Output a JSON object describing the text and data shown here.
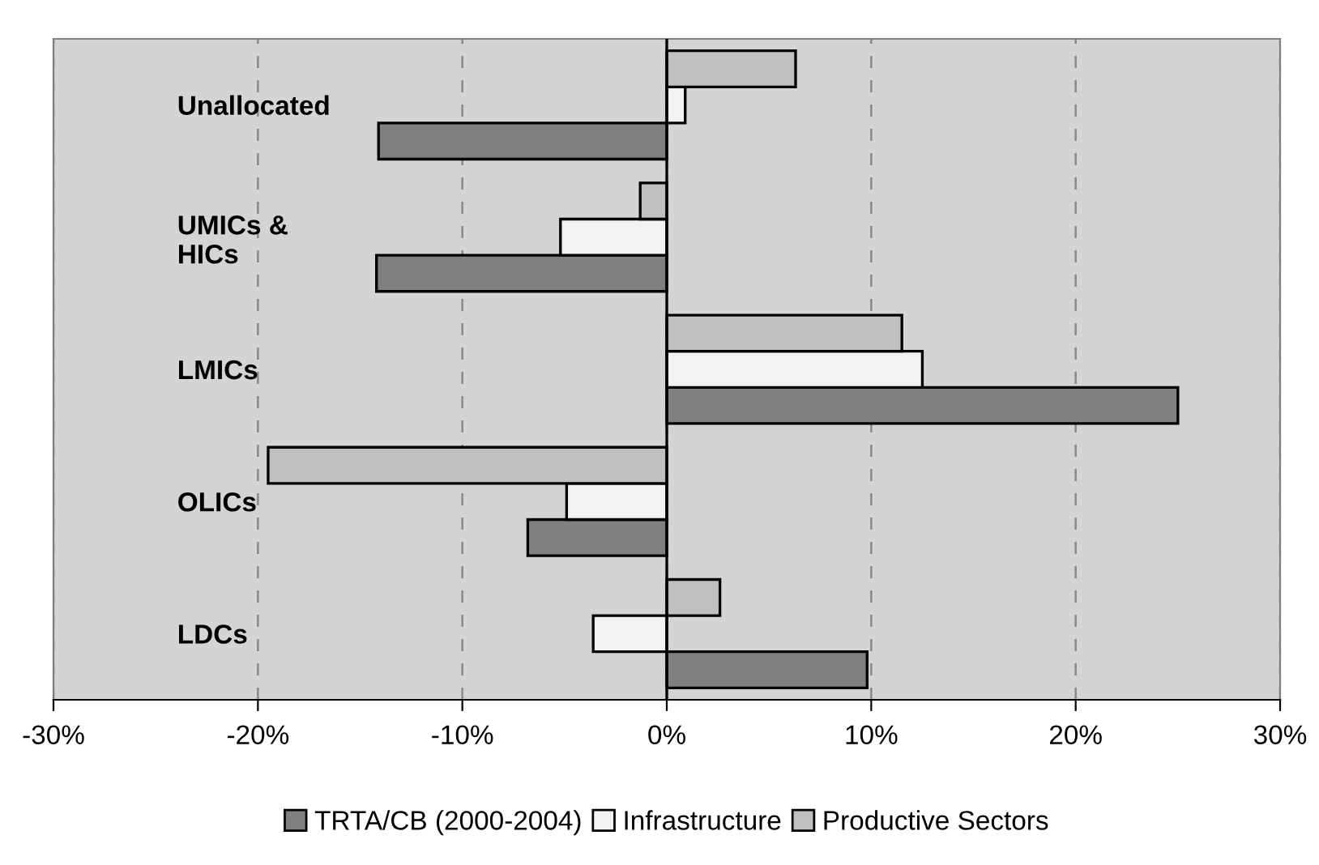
{
  "chart_data": {
    "type": "bar",
    "orientation": "horizontal",
    "categories": [
      "Unallocated",
      "UMICs &\nHICs",
      "LMICs",
      "OLICs",
      "LDCs"
    ],
    "series": [
      {
        "name": "TRTA/CB (2000-2004)",
        "color": "#808080",
        "values": [
          -14.1,
          -14.2,
          25.0,
          -6.8,
          9.8
        ]
      },
      {
        "name": "Infrastructure",
        "color": "#f2f2f2",
        "values": [
          0.9,
          -5.2,
          12.5,
          -4.9,
          -3.6
        ]
      },
      {
        "name": "Productive Sectors",
        "color": "#c0c0c0",
        "values": [
          6.3,
          -1.3,
          11.5,
          -19.5,
          2.6
        ]
      }
    ],
    "xlim": [
      -30,
      30
    ],
    "xticks": [
      {
        "value": -30,
        "label": "-30%"
      },
      {
        "value": -20,
        "label": "-20%"
      },
      {
        "value": -10,
        "label": "-10%"
      },
      {
        "value": 0,
        "label": "0%"
      },
      {
        "value": 10,
        "label": "10%"
      },
      {
        "value": 20,
        "label": "20%"
      },
      {
        "value": 30,
        "label": "30%"
      }
    ],
    "grid": "x",
    "legend": "bottom"
  }
}
